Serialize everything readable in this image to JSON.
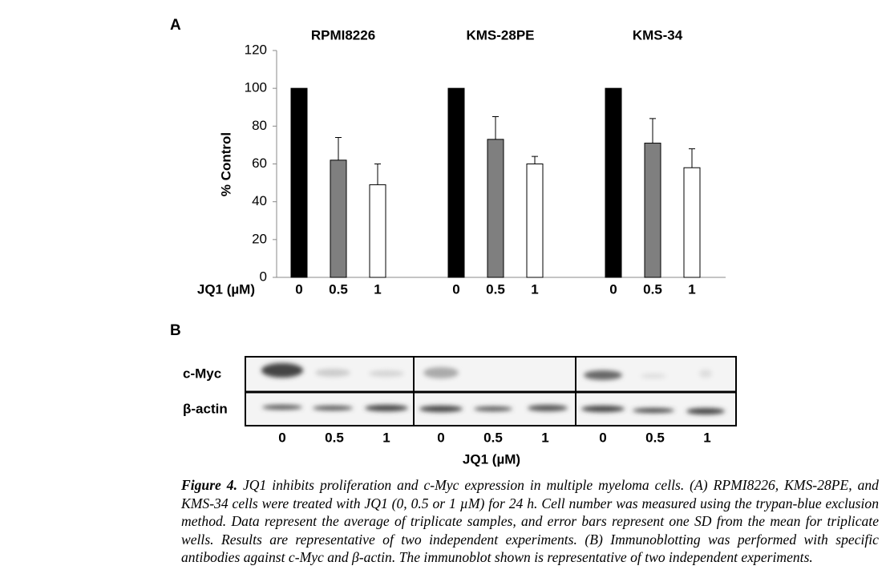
{
  "chart_data": {
    "type": "bar",
    "panel_label": "A",
    "categories": [
      "RPMI8226",
      "KMS-28PE",
      "KMS-34"
    ],
    "series": [
      {
        "name": "0",
        "color": "#000000",
        "values": [
          100,
          100,
          100
        ]
      },
      {
        "name": "0.5",
        "color": "#7f7f7f",
        "values": [
          62,
          73,
          71
        ],
        "errors": [
          12,
          12,
          13
        ]
      },
      {
        "name": "1",
        "color": "#ffffff",
        "values": [
          49,
          60,
          58
        ],
        "errors": [
          11,
          4,
          10
        ]
      }
    ],
    "xlabel": "JQ1 (µM)",
    "ylabel": "% Control",
    "ylim": [
      0,
      120
    ],
    "yticks": [
      0,
      20,
      40,
      60,
      80,
      100,
      120
    ],
    "grid": false
  },
  "blot": {
    "panel_label": "B",
    "rows": [
      "c-Myc",
      "β-actin"
    ],
    "lanes": [
      "0",
      "0.5",
      "1"
    ],
    "xlabel": "JQ1 (µM)"
  },
  "caption": {
    "label": "Figure 4.",
    "text": "JQ1 inhibits proliferation and c-Myc expression in multiple myeloma cells. (A) RPMI8226, KMS-28PE, and KMS-34 cells were treated with JQ1 (0, 0.5 or 1 µM) for 24 h. Cell number was measured using the trypan-blue exclusion method. Data represent the average of triplicate samples, and error bars represent one SD from the mean for triplicate wells. Results are representative of two independent experiments. (B) Immunoblotting was performed with specific antibodies against c-Myc and β-actin. The immunoblot shown is representative of two independent experiments."
  }
}
